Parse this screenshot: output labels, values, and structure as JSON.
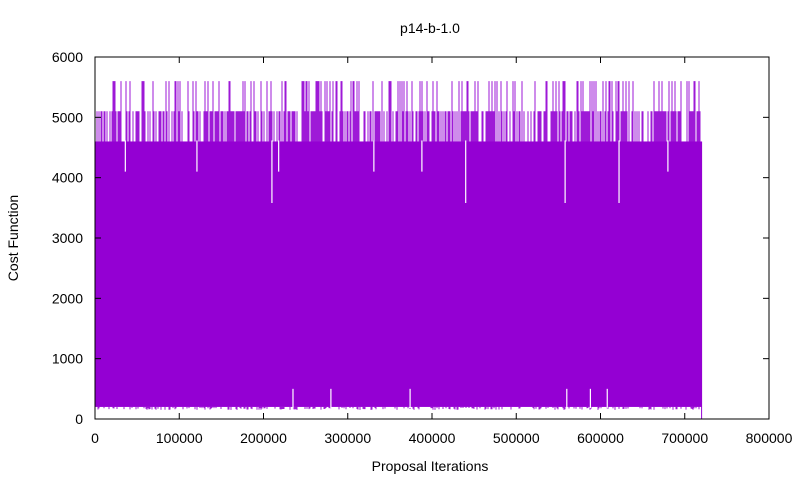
{
  "chart_data": {
    "type": "line",
    "title": "p14-b-1.0",
    "xlabel": "Proposal Iterations",
    "ylabel": "Cost Function",
    "xlim": [
      0,
      800000
    ],
    "ylim": [
      0,
      6000
    ],
    "x_ticks": [
      "0",
      "100000",
      "200000",
      "300000",
      "400000",
      "500000",
      "600000",
      "700000",
      "800000"
    ],
    "y_ticks": [
      "0",
      "1000",
      "2000",
      "3000",
      "4000",
      "5000",
      "6000"
    ],
    "grid": false,
    "series": [
      {
        "color": "#9400d3",
        "x_range": [
          0,
          720000
        ],
        "band_min": 200,
        "band_max": 4600,
        "upper_levels": [
          5100,
          5600
        ],
        "final_value": 0,
        "low_dips": [
          {
            "x": 210000,
            "y": 3580
          },
          {
            "x": 440000,
            "y": 3580
          },
          {
            "x": 558000,
            "y": 3580
          },
          {
            "x": 622000,
            "y": 3580
          },
          {
            "x": 36000,
            "y": 4100
          },
          {
            "x": 121000,
            "y": 4100
          },
          {
            "x": 218000,
            "y": 4100
          },
          {
            "x": 331000,
            "y": 4100
          },
          {
            "x": 388000,
            "y": 4100
          },
          {
            "x": 680000,
            "y": 4100
          }
        ],
        "high_spikes": [
          {
            "x": 235000,
            "y": 500
          },
          {
            "x": 280000,
            "y": 500
          },
          {
            "x": 374000,
            "y": 500
          },
          {
            "x": 560000,
            "y": 500
          },
          {
            "x": 588000,
            "y": 500
          },
          {
            "x": 608000,
            "y": 500
          }
        ]
      }
    ]
  }
}
